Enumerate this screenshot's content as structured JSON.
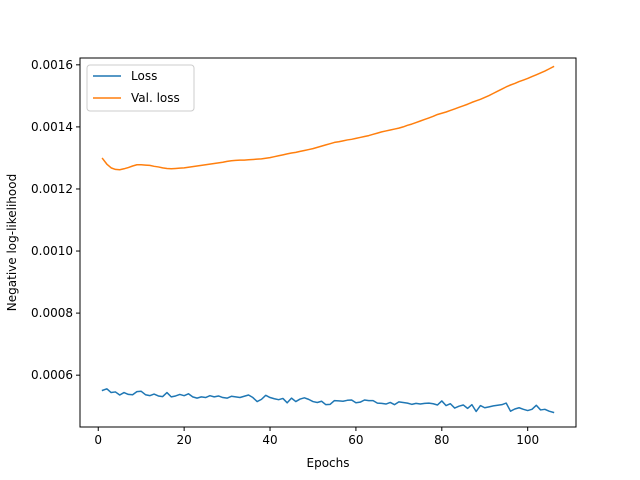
{
  "chart_data": {
    "type": "line",
    "title": "",
    "xlabel": "Epochs",
    "ylabel": "Negative log-likelihood",
    "xlim": [
      -4.25,
      111.25
    ],
    "ylim": [
      0.000433,
      0.001622
    ],
    "x_ticks": [
      0,
      20,
      40,
      60,
      80,
      100
    ],
    "y_ticks": [
      0.0006,
      0.0008,
      0.001,
      0.0012,
      0.0014,
      0.0016
    ],
    "y_tick_labels": [
      "0.0006",
      "0.0008",
      "0.0010",
      "0.0012",
      "0.0014",
      "0.0016"
    ],
    "legend_position": "upper-left",
    "x": [
      1,
      2,
      3,
      4,
      5,
      6,
      7,
      8,
      9,
      10,
      11,
      12,
      13,
      14,
      15,
      16,
      17,
      18,
      19,
      20,
      21,
      22,
      23,
      24,
      25,
      26,
      27,
      28,
      29,
      30,
      31,
      32,
      33,
      34,
      35,
      36,
      37,
      38,
      39,
      40,
      41,
      42,
      43,
      44,
      45,
      46,
      47,
      48,
      49,
      50,
      51,
      52,
      53,
      54,
      55,
      56,
      57,
      58,
      59,
      60,
      61,
      62,
      63,
      64,
      65,
      66,
      67,
      68,
      69,
      70,
      71,
      72,
      73,
      74,
      75,
      76,
      77,
      78,
      79,
      80,
      81,
      82,
      83,
      84,
      85,
      86,
      87,
      88,
      89,
      90,
      91,
      92,
      93,
      94,
      95,
      96,
      97,
      98,
      99,
      100,
      101,
      102,
      103,
      104,
      105,
      106
    ],
    "series": [
      {
        "name": "Loss",
        "color": "#1f77b4",
        "values": [
          0.000551,
          0.000556,
          0.000544,
          0.000546,
          0.000536,
          0.000544,
          0.000538,
          0.000537,
          0.000547,
          0.000548,
          0.000537,
          0.000534,
          0.000539,
          0.000533,
          0.000531,
          0.000544,
          0.00053,
          0.000533,
          0.000538,
          0.000534,
          0.00054,
          0.00053,
          0.000526,
          0.00053,
          0.000528,
          0.000534,
          0.00053,
          0.000533,
          0.000528,
          0.000526,
          0.000532,
          0.00053,
          0.000528,
          0.000532,
          0.000536,
          0.000528,
          0.000515,
          0.000522,
          0.000535,
          0.000528,
          0.000524,
          0.000521,
          0.000525,
          0.000511,
          0.000526,
          0.000515,
          0.000523,
          0.000527,
          0.000522,
          0.000515,
          0.000512,
          0.000516,
          0.000505,
          0.000506,
          0.000518,
          0.000517,
          0.000516,
          0.000519,
          0.00052,
          0.000511,
          0.000513,
          0.00052,
          0.000518,
          0.000518,
          0.00051,
          0.000509,
          0.000507,
          0.000512,
          0.000505,
          0.000514,
          0.000512,
          0.00051,
          0.000506,
          0.000509,
          0.000507,
          0.000509,
          0.00051,
          0.000508,
          0.000504,
          0.000517,
          0.000502,
          0.000508,
          0.000494,
          0.0005,
          0.000504,
          0.000493,
          0.000505,
          0.000483,
          0.000502,
          0.000495,
          0.000498,
          0.000501,
          0.000503,
          0.000505,
          0.00051,
          0.000484,
          0.000491,
          0.000495,
          0.00049,
          0.000486,
          0.00049,
          0.000503,
          0.000488,
          0.00049,
          0.000484,
          0.00048
        ]
      },
      {
        "name": "Val. loss",
        "color": "#ff7f0e",
        "values": [
          0.001298,
          0.00128,
          0.001268,
          0.001263,
          0.001262,
          0.001265,
          0.001269,
          0.001274,
          0.001278,
          0.001278,
          0.001277,
          0.001276,
          0.001273,
          0.001271,
          0.001268,
          0.001266,
          0.001265,
          0.001266,
          0.001267,
          0.001268,
          0.00127,
          0.001272,
          0.001274,
          0.001276,
          0.001278,
          0.00128,
          0.001282,
          0.001284,
          0.001286,
          0.001289,
          0.001291,
          0.001292,
          0.001293,
          0.001293,
          0.001294,
          0.001295,
          0.001296,
          0.001297,
          0.001299,
          0.001301,
          0.001304,
          0.001307,
          0.00131,
          0.001313,
          0.001316,
          0.001318,
          0.001321,
          0.001324,
          0.001327,
          0.00133,
          0.001334,
          0.001338,
          0.001342,
          0.001346,
          0.00135,
          0.001352,
          0.001355,
          0.001358,
          0.00136,
          0.001363,
          0.001366,
          0.001369,
          0.001372,
          0.001376,
          0.00138,
          0.001384,
          0.001387,
          0.00139,
          0.001393,
          0.001396,
          0.0014,
          0.001405,
          0.001409,
          0.001414,
          0.001419,
          0.001424,
          0.001429,
          0.001434,
          0.00144,
          0.001444,
          0.001448,
          0.001453,
          0.001458,
          0.001463,
          0.001468,
          0.001473,
          0.001479,
          0.001484,
          0.001489,
          0.001495,
          0.001501,
          0.001508,
          0.001515,
          0.001522,
          0.001529,
          0.001535,
          0.00154,
          0.001546,
          0.001551,
          0.001556,
          0.001562,
          0.001568,
          0.001574,
          0.00158,
          0.001587,
          0.001594
        ]
      }
    ]
  }
}
